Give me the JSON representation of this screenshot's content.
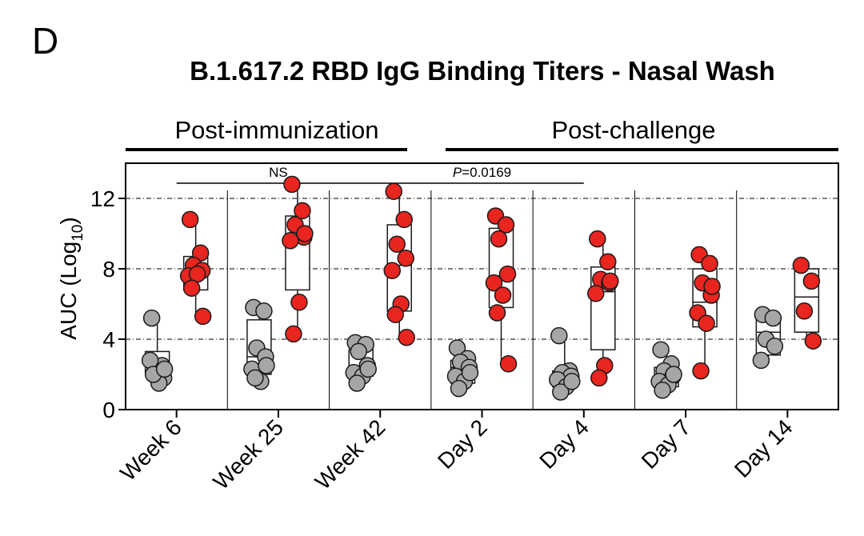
{
  "panel_label": "D",
  "chart_data": {
    "type": "box-scatter",
    "title": "B.1.617.2 RBD IgG Binding Titers - Nasal Wash",
    "group_labels": [
      "Post-immunization",
      "Post-challenge"
    ],
    "ylabel_main": "AUC (Log",
    "ylabel_sub": "10",
    "ylabel_close": ")",
    "ylim": [
      0,
      14
    ],
    "yticks": [
      0,
      4,
      8,
      12
    ],
    "gridlines": [
      4,
      8,
      12
    ],
    "categories": [
      "Week 6",
      "Week 25",
      "Week 42",
      "Day 2",
      "Day 4",
      "Day 7",
      "Day 14"
    ],
    "annotations": [
      {
        "text": "NS",
        "from": 0,
        "to": 2
      },
      {
        "text_italic": "P",
        "text_rest": "=0.0169",
        "from": 2,
        "to": 4
      }
    ],
    "colors": {
      "series_a": "#a6a6a6",
      "series_b": "#e8251f",
      "outline": "#1a1a1a"
    },
    "series": [
      {
        "color_key": "series_a",
        "boxes": [
          {
            "min": 1.4,
            "q1": 2.1,
            "median": 2.5,
            "q3": 3.3,
            "max": 5.2
          },
          {
            "min": 1.6,
            "q1": 2.0,
            "median": 3.0,
            "q3": 5.1,
            "max": 5.8
          },
          {
            "min": 1.5,
            "q1": 1.9,
            "median": 2.4,
            "q3": 3.4,
            "max": 3.8
          },
          {
            "min": 1.2,
            "q1": 1.5,
            "median": 2.4,
            "q3": 2.8,
            "max": 3.5
          },
          {
            "min": 0.9,
            "q1": 1.3,
            "median": 1.9,
            "q3": 2.2,
            "max": 4.2
          },
          {
            "min": 1.0,
            "q1": 1.3,
            "median": 1.9,
            "q3": 2.4,
            "max": 3.4
          },
          {
            "min": 2.8,
            "q1": 3.1,
            "median": 4.4,
            "q3": 5.2,
            "max": 5.4
          }
        ],
        "points": [
          [
            5.2,
            2.5,
            2.2,
            1.8,
            2.8,
            1.5,
            2.0,
            2.3
          ],
          [
            5.8,
            5.6,
            3.5,
            3.0,
            2.3,
            1.6,
            1.8,
            2.5
          ],
          [
            3.8,
            3.7,
            3.3,
            2.5,
            2.1,
            1.9,
            1.5,
            2.3
          ],
          [
            3.5,
            2.9,
            2.7,
            2.4,
            1.9,
            1.6,
            1.2,
            2.1
          ],
          [
            4.2,
            2.2,
            2.1,
            1.9,
            1.7,
            1.3,
            1.0,
            1.6
          ],
          [
            3.4,
            2.6,
            2.2,
            1.9,
            1.6,
            1.4,
            1.1,
            2.0
          ],
          [
            5.4,
            5.2,
            4.0,
            3.6,
            2.8
          ]
        ]
      },
      {
        "color_key": "series_b",
        "boxes": [
          {
            "min": 5.3,
            "q1": 6.8,
            "median": 7.7,
            "q3": 8.7,
            "max": 10.8
          },
          {
            "min": 4.3,
            "q1": 6.8,
            "median": 9.7,
            "q3": 11.0,
            "max": 12.8
          },
          {
            "min": 4.1,
            "q1": 5.6,
            "median": 8.2,
            "q3": 10.5,
            "max": 12.4
          },
          {
            "min": 2.6,
            "q1": 5.8,
            "median": 7.6,
            "q3": 10.3,
            "max": 11.0
          },
          {
            "min": 1.8,
            "q1": 3.4,
            "median": 6.7,
            "q3": 8.1,
            "max": 9.7
          },
          {
            "min": 2.2,
            "q1": 4.7,
            "median": 6.1,
            "q3": 8.0,
            "max": 8.8
          },
          {
            "min": 3.9,
            "q1": 4.4,
            "median": 6.4,
            "q3": 8.0,
            "max": 8.2
          }
        ],
        "points": [
          [
            10.8,
            8.9,
            8.2,
            7.9,
            7.6,
            7.7,
            6.9,
            5.3
          ],
          [
            12.8,
            11.3,
            10.5,
            9.8,
            9.6,
            6.1,
            4.3,
            10.0
          ],
          [
            12.4,
            10.8,
            9.4,
            8.6,
            7.9,
            6.0,
            5.4,
            4.1
          ],
          [
            11.0,
            10.5,
            9.7,
            7.7,
            7.2,
            6.5,
            5.5,
            2.6
          ],
          [
            9.7,
            8.4,
            7.4,
            7.2,
            6.6,
            2.5,
            1.8,
            7.3
          ],
          [
            8.8,
            8.3,
            7.2,
            6.5,
            5.5,
            4.9,
            2.2,
            7.0
          ],
          [
            8.2,
            7.3,
            5.6,
            3.9
          ]
        ]
      }
    ]
  }
}
